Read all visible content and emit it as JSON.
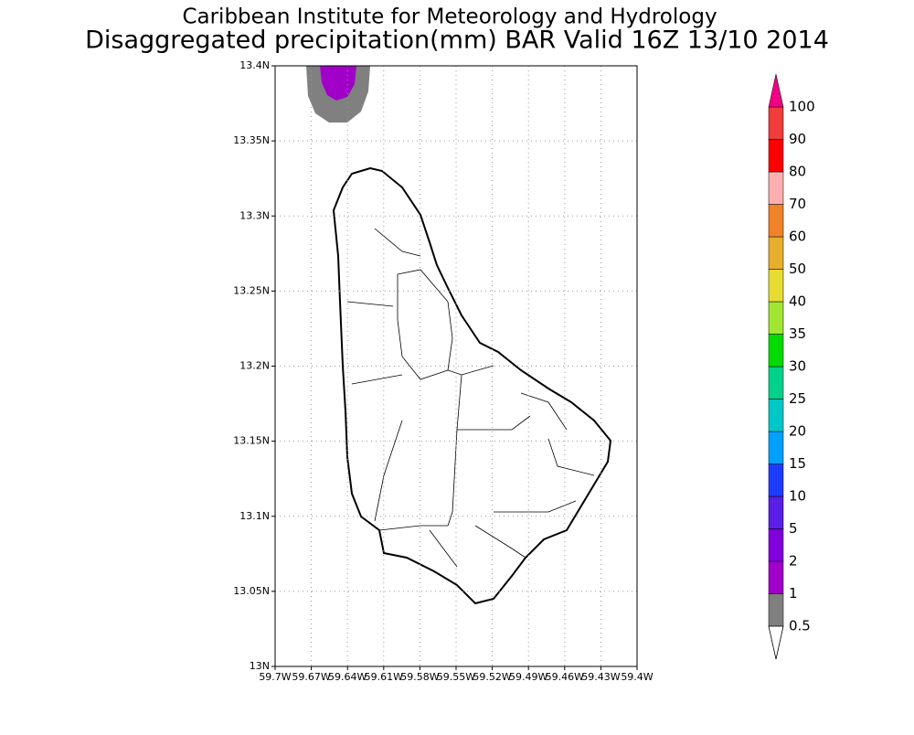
{
  "title": "Caribbean Institute for Meteorology and Hydrology",
  "subtitle": "Disaggregated precipitation(mm) BAR Valid 16Z 13/10 2014",
  "map": {
    "xlim": [
      -59.7,
      -59.4
    ],
    "ylim": [
      13,
      13.4
    ],
    "xticks": [
      {
        "value": -59.7,
        "label": "59.7W"
      },
      {
        "value": -59.67,
        "label": "59.67W"
      },
      {
        "value": -59.64,
        "label": "59.64W"
      },
      {
        "value": -59.61,
        "label": "59.61W"
      },
      {
        "value": -59.58,
        "label": "59.58W"
      },
      {
        "value": -59.55,
        "label": "59.55W"
      },
      {
        "value": -59.52,
        "label": "59.52W"
      },
      {
        "value": -59.49,
        "label": "59.49W"
      },
      {
        "value": -59.46,
        "label": "59.46W"
      },
      {
        "value": -59.43,
        "label": "59.43W"
      },
      {
        "value": -59.4,
        "label": "59.4W"
      }
    ],
    "yticks": [
      {
        "value": 13,
        "label": "13N"
      },
      {
        "value": 13.05,
        "label": "13.05N"
      },
      {
        "value": 13.1,
        "label": "13.1N"
      },
      {
        "value": 13.15,
        "label": "13.15N"
      },
      {
        "value": 13.2,
        "label": "13.2N"
      },
      {
        "value": 13.25,
        "label": "13.25N"
      },
      {
        "value": 13.3,
        "label": "13.3N"
      },
      {
        "value": 13.35,
        "label": "13.35N"
      },
      {
        "value": 13.4,
        "label": "13.4N"
      }
    ],
    "grid": true
  },
  "colorbar": {
    "levels": [
      0.5,
      1,
      2,
      5,
      10,
      15,
      20,
      25,
      30,
      35,
      40,
      50,
      60,
      70,
      80,
      90,
      100
    ],
    "colors": [
      "#808080",
      "#a000c8",
      "#8200dc",
      "#5a1ee6",
      "#1e3cff",
      "#00a0ff",
      "#00c8c8",
      "#00d28c",
      "#00dc00",
      "#a0e632",
      "#e6dc32",
      "#e6af2d",
      "#f08228",
      "#ffafaf",
      "#ff0000",
      "#f03c3c"
    ],
    "under_color": "#ffffff",
    "over_color": "#f00082"
  }
}
